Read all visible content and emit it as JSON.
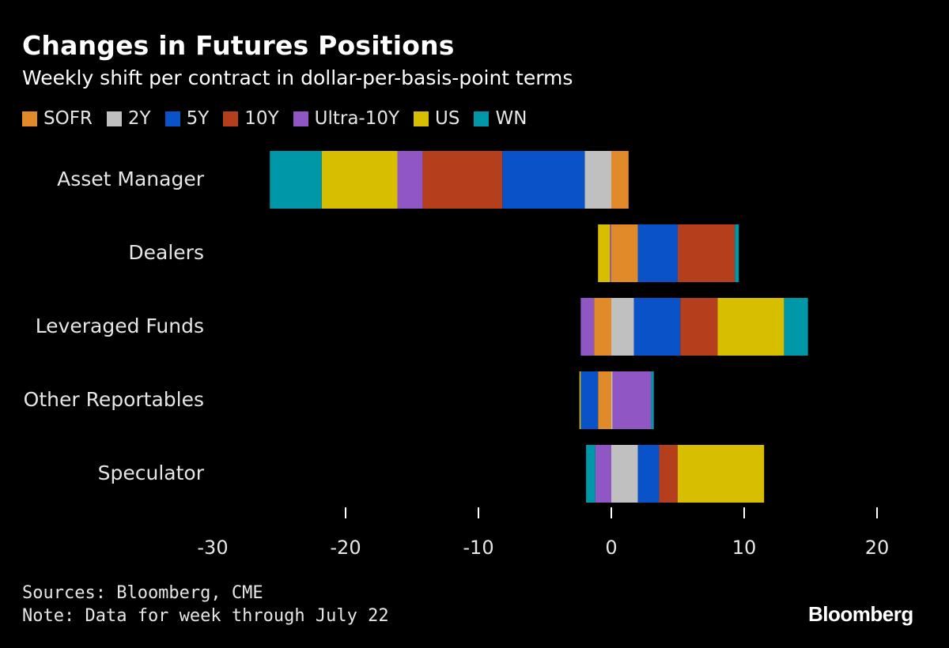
{
  "header": {
    "title": "Changes in Futures Positions",
    "subtitle": "Weekly shift per contract in dollar-per-basis-point terms"
  },
  "footer": {
    "sources": "Sources: Bloomberg, CME",
    "note": "Note: Data for week through July 22",
    "brand": "Bloomberg"
  },
  "chart_data": {
    "type": "bar",
    "orientation": "horizontal",
    "stacked": true,
    "title": "Changes in Futures Positions",
    "subtitle": "Weekly shift per contract in dollar-per-basis-point terms",
    "xlabel": "",
    "ylabel": "",
    "xlim": [
      -30,
      20
    ],
    "xticks": [
      -30,
      -20,
      -10,
      0,
      10,
      20
    ],
    "grid": false,
    "legend_position": "top-left",
    "categories": [
      "Asset Manager",
      "Dealers",
      "Leveraged Funds",
      "Other Reportables",
      "Speculator"
    ],
    "series": [
      {
        "name": "SOFR",
        "color": "#e08a2a",
        "values": [
          1.3,
          2.0,
          -1.3,
          -1.0,
          0.0
        ]
      },
      {
        "name": "2Y",
        "color": "#c0c0c0",
        "values": [
          -2.0,
          0.0,
          1.7,
          0.1,
          2.0
        ]
      },
      {
        "name": "5Y",
        "color": "#0a52c8",
        "values": [
          -6.2,
          3.0,
          3.5,
          -1.3,
          1.6
        ]
      },
      {
        "name": "10Y",
        "color": "#b53e1c",
        "values": [
          -6.0,
          4.3,
          2.8,
          0.0,
          1.4
        ]
      },
      {
        "name": "Ultra-10Y",
        "color": "#8f56c4",
        "values": [
          -1.9,
          -0.1,
          -1.0,
          2.9,
          -1.2
        ]
      },
      {
        "name": "US",
        "color": "#d7bf00",
        "values": [
          -5.7,
          -0.9,
          5.0,
          -0.1,
          6.5
        ]
      },
      {
        "name": "WN",
        "color": "#0098a8",
        "values": [
          -3.9,
          0.3,
          1.8,
          0.2,
          -0.7
        ]
      }
    ]
  }
}
